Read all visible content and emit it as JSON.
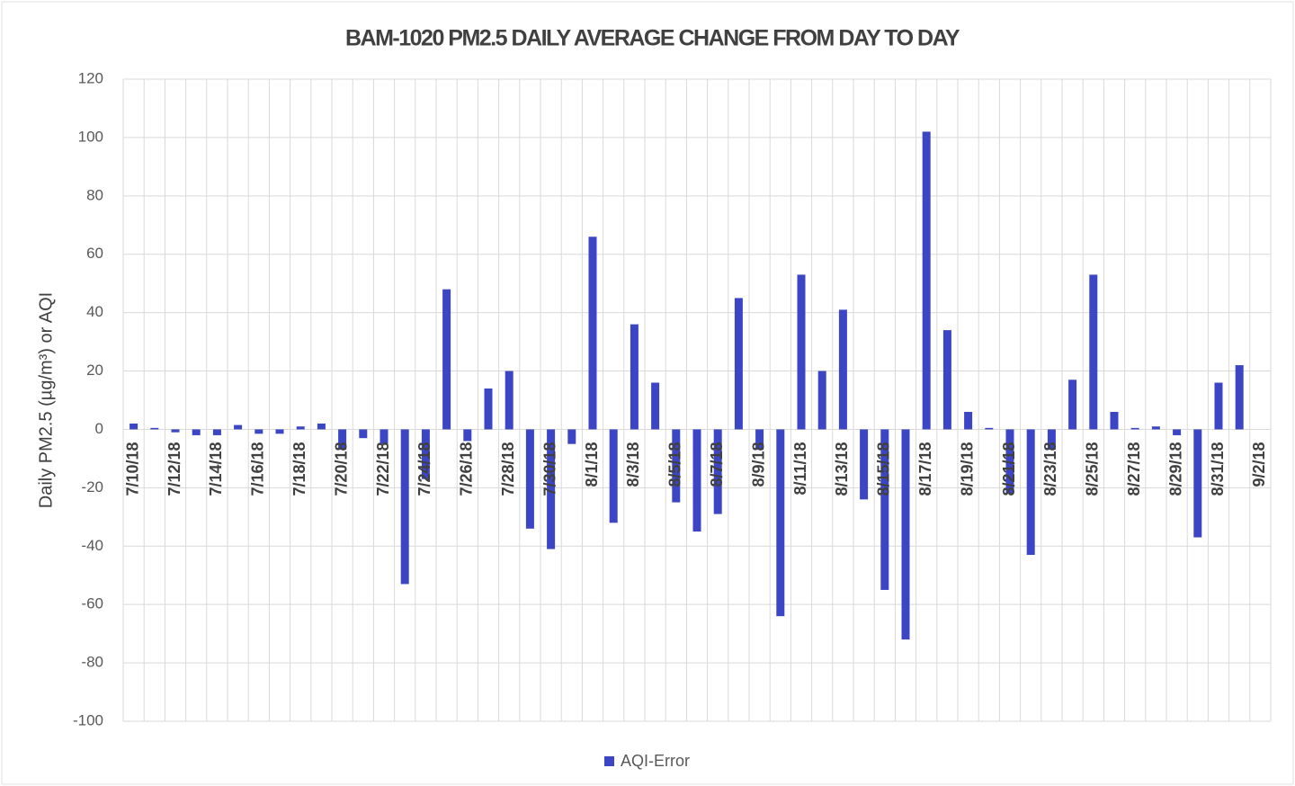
{
  "chart_data": {
    "type": "bar",
    "title": "BAM-1020 PM2.5 DAILY AVERAGE CHANGE FROM DAY TO DAY",
    "y_label": "Daily PM2.5 (µg/m³) or AQI",
    "categories": [
      "7/10/18",
      null,
      "7/12/18",
      null,
      "7/14/18",
      null,
      "7/16/18",
      null,
      "7/18/18",
      null,
      "7/20/18",
      null,
      "7/22/18",
      null,
      "7/24/18",
      null,
      "7/26/18",
      null,
      "7/28/18",
      null,
      "7/30/18",
      null,
      "8/1/18",
      null,
      "8/3/18",
      null,
      "8/5/18",
      null,
      "8/7/18",
      null,
      "8/9/18",
      null,
      "8/11/18",
      null,
      "8/13/18",
      null,
      "8/15/18",
      null,
      "8/17/18",
      null,
      "8/19/18",
      null,
      "8/21/18",
      null,
      "8/23/18",
      null,
      "8/25/18",
      null,
      "8/27/18",
      null,
      "8/29/18",
      null,
      "8/31/18",
      null,
      "9/2/18"
    ],
    "series": [
      {
        "name": "AQI-Error",
        "color": "#3c46c4",
        "values": [
          2,
          0.5,
          -1,
          -2,
          -2,
          1.5,
          -1.5,
          -1.5,
          1,
          2,
          -7,
          -3,
          -5,
          -53,
          -17,
          48,
          -4,
          14,
          20,
          -34,
          -41,
          -5,
          66,
          -32,
          36,
          16,
          -25,
          -35,
          -29,
          45,
          -7,
          -64,
          53,
          20,
          41,
          -24,
          -55,
          -72,
          102,
          34,
          6,
          0.5,
          -22,
          -43,
          -7,
          17,
          53,
          6,
          0.5,
          1,
          -2,
          -37,
          16,
          22,
          null
        ]
      }
    ],
    "ylim": [
      -100,
      120
    ],
    "yticks": [
      -100,
      -80,
      -60,
      -40,
      -20,
      0,
      20,
      40,
      60,
      80,
      100,
      120
    ],
    "grid": true,
    "legend": "bottom"
  }
}
